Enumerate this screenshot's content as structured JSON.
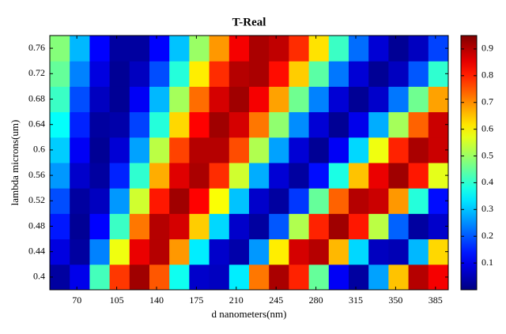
{
  "chart_data": {
    "type": "heatmap",
    "title": "T-Real",
    "x_label": "d nanometers(nm)",
    "y_label": "lambda microns(um)",
    "colormap": "jet",
    "x": [
      55,
      72.5,
      90,
      107.5,
      125,
      142.5,
      160,
      177.5,
      195,
      212.5,
      230,
      247.5,
      265,
      282.5,
      300,
      317.5,
      335,
      352.5,
      370,
      387.5
    ],
    "y": [
      0.4,
      0.44,
      0.48,
      0.52,
      0.56,
      0.6,
      0.64,
      0.68,
      0.72,
      0.76
    ],
    "z": [
      [
        0.03,
        0.1,
        0.42,
        0.78,
        0.92,
        0.75,
        0.37,
        0.07,
        0.06,
        0.34,
        0.72,
        0.91,
        0.8,
        0.45,
        0.11,
        0.03,
        0.27,
        0.65,
        0.9,
        0.84
      ],
      [
        0.09,
        0.03,
        0.24,
        0.58,
        0.85,
        0.9,
        0.69,
        0.34,
        0.07,
        0.04,
        0.26,
        0.61,
        0.87,
        0.9,
        0.66,
        0.32,
        0.06,
        0.05,
        0.29,
        0.63
      ],
      [
        0.14,
        0.02,
        0.12,
        0.41,
        0.72,
        0.9,
        0.87,
        0.64,
        0.32,
        0.07,
        0.03,
        0.2,
        0.52,
        0.8,
        0.92,
        0.81,
        0.53,
        0.21,
        0.03,
        0.07
      ],
      [
        0.19,
        0.03,
        0.06,
        0.26,
        0.55,
        0.81,
        0.92,
        0.83,
        0.59,
        0.3,
        0.07,
        0.03,
        0.17,
        0.45,
        0.74,
        0.9,
        0.88,
        0.69,
        0.39,
        0.13
      ],
      [
        0.26,
        0.07,
        0.03,
        0.15,
        0.4,
        0.67,
        0.86,
        0.91,
        0.79,
        0.55,
        0.28,
        0.08,
        0.03,
        0.13,
        0.38,
        0.65,
        0.85,
        0.92,
        0.81,
        0.57
      ],
      [
        0.31,
        0.11,
        0.02,
        0.08,
        0.27,
        0.53,
        0.77,
        0.9,
        0.9,
        0.76,
        0.52,
        0.27,
        0.08,
        0.02,
        0.11,
        0.32,
        0.58,
        0.8,
        0.91,
        0.88
      ],
      [
        0.36,
        0.15,
        0.03,
        0.04,
        0.18,
        0.39,
        0.63,
        0.83,
        0.92,
        0.87,
        0.72,
        0.49,
        0.25,
        0.08,
        0.02,
        0.1,
        0.28,
        0.51,
        0.74,
        0.88
      ],
      [
        0.41,
        0.19,
        0.06,
        0.02,
        0.11,
        0.29,
        0.51,
        0.73,
        0.87,
        0.92,
        0.84,
        0.68,
        0.46,
        0.24,
        0.08,
        0.02,
        0.07,
        0.23,
        0.46,
        0.68
      ],
      [
        0.45,
        0.24,
        0.09,
        0.02,
        0.06,
        0.19,
        0.39,
        0.61,
        0.79,
        0.9,
        0.91,
        0.82,
        0.64,
        0.44,
        0.23,
        0.08,
        0.02,
        0.06,
        0.2,
        0.4
      ],
      [
        0.48,
        0.29,
        0.12,
        0.03,
        0.03,
        0.12,
        0.3,
        0.5,
        0.69,
        0.84,
        0.91,
        0.89,
        0.79,
        0.62,
        0.41,
        0.22,
        0.08,
        0.02,
        0.06,
        0.18
      ]
    ],
    "xlim": [
      46.25,
      396.25
    ],
    "xticks": [
      70,
      105,
      140,
      175,
      210,
      245,
      280,
      315,
      350,
      385
    ],
    "ylim": [
      0.38,
      0.78
    ],
    "yticks": [
      0.4,
      0.44,
      0.48,
      0.52,
      0.56,
      0.6,
      0.64,
      0.68,
      0.72,
      0.76
    ],
    "zlim": [
      0,
      0.95
    ],
    "zticks": [
      0.1,
      0.2,
      0.3,
      0.4,
      0.5,
      0.6,
      0.7,
      0.8,
      0.9
    ]
  }
}
